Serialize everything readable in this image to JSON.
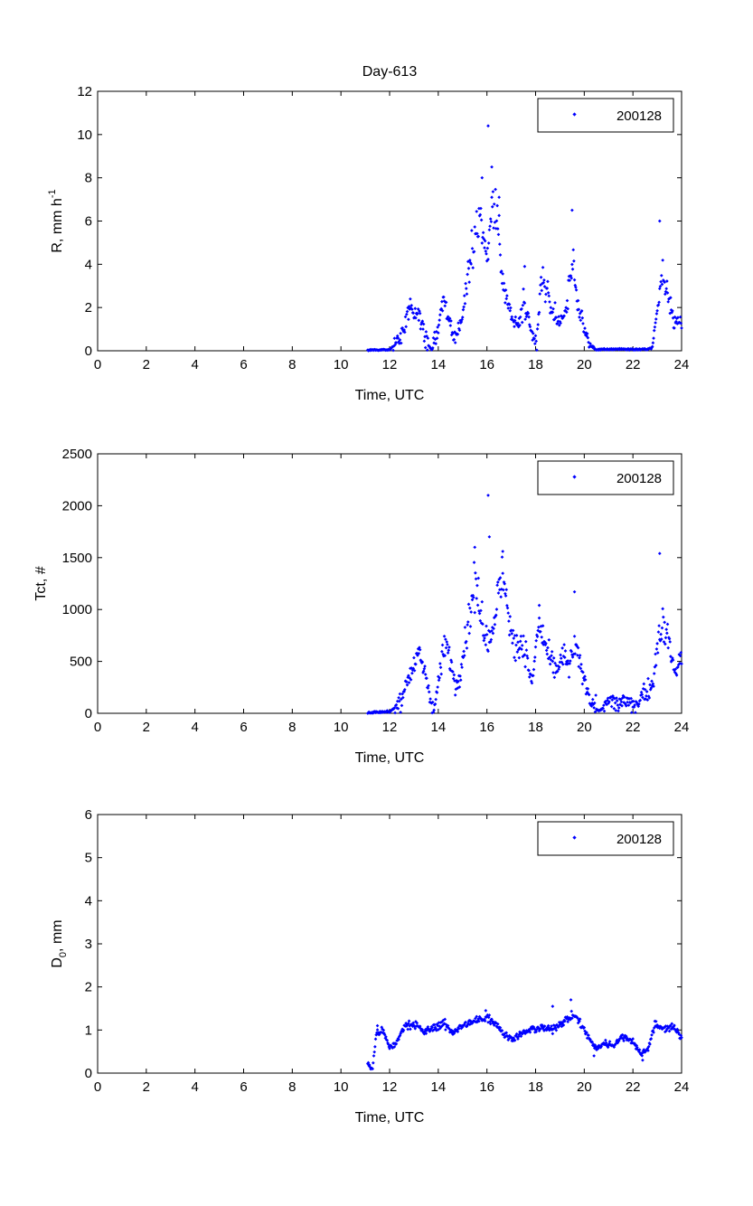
{
  "figure": {
    "title": "Day-613"
  },
  "colors": {
    "series": "#0000ff",
    "axis": "#000000",
    "background": "#ffffff"
  },
  "chart_data": [
    {
      "type": "scatter",
      "title": "Day-613",
      "xlabel": "Time, UTC",
      "ylabel": "R, mm h",
      "ylabel_sup": "-1",
      "xlim": [
        0,
        24
      ],
      "ylim": [
        0,
        12
      ],
      "xticks": [
        0,
        2,
        4,
        6,
        8,
        10,
        12,
        14,
        16,
        18,
        20,
        22,
        24
      ],
      "yticks": [
        0,
        2,
        4,
        6,
        8,
        10,
        12
      ],
      "legend": {
        "label": "200128",
        "placement": "top-right"
      },
      "series": [
        {
          "name": "200128",
          "anchors": [
            [
              11.1,
              0.02
            ],
            [
              11.5,
              0.03
            ],
            [
              12.0,
              0.05
            ],
            [
              12.5,
              0.7
            ],
            [
              12.8,
              1.9
            ],
            [
              13.1,
              1.7
            ],
            [
              13.35,
              1.2
            ],
            [
              13.6,
              0.2
            ],
            [
              13.75,
              0.05
            ],
            [
              14.0,
              1.2
            ],
            [
              14.2,
              2.3
            ],
            [
              14.45,
              1.4
            ],
            [
              14.7,
              0.5
            ],
            [
              15.0,
              1.5
            ],
            [
              15.2,
              3.5
            ],
            [
              15.45,
              5.0
            ],
            [
              15.7,
              6.5
            ],
            [
              15.9,
              5.0
            ],
            [
              16.05,
              4.5
            ],
            [
              16.2,
              7.0
            ],
            [
              16.5,
              5.5
            ],
            [
              16.7,
              2.8
            ],
            [
              17.0,
              1.6
            ],
            [
              17.25,
              1.0
            ],
            [
              17.5,
              2.2
            ],
            [
              17.8,
              0.8
            ],
            [
              18.05,
              0.3
            ],
            [
              18.25,
              3.5
            ],
            [
              18.5,
              2.5
            ],
            [
              18.7,
              1.8
            ],
            [
              19.0,
              1.3
            ],
            [
              19.3,
              2.2
            ],
            [
              19.55,
              4.2
            ],
            [
              19.75,
              2.0
            ],
            [
              20.0,
              1.0
            ],
            [
              20.2,
              0.3
            ],
            [
              20.5,
              0.05
            ],
            [
              21.5,
              0.08
            ],
            [
              22.5,
              0.05
            ],
            [
              22.8,
              0.15
            ],
            [
              23.0,
              1.8
            ],
            [
              23.2,
              3.6
            ],
            [
              23.5,
              2.5
            ],
            [
              23.7,
              1.4
            ],
            [
              24.0,
              1.2
            ]
          ],
          "outliers": [
            [
              16.05,
              10.4
            ],
            [
              16.2,
              8.5
            ],
            [
              15.8,
              8.0
            ],
            [
              19.5,
              6.5
            ],
            [
              23.1,
              6.0
            ],
            [
              16.5,
              7.1
            ],
            [
              17.55,
              3.9
            ]
          ]
        }
      ]
    },
    {
      "type": "scatter",
      "title": "",
      "xlabel": "Time, UTC",
      "ylabel": "Tct, #",
      "ylabel_sup": "",
      "xlim": [
        0,
        24
      ],
      "ylim": [
        0,
        2500
      ],
      "xticks": [
        0,
        2,
        4,
        6,
        8,
        10,
        12,
        14,
        16,
        18,
        20,
        22,
        24
      ],
      "yticks": [
        0,
        500,
        1000,
        1500,
        2000,
        2500
      ],
      "legend": {
        "label": "200128",
        "placement": "top-right"
      },
      "series": [
        {
          "name": "200128",
          "anchors": [
            [
              11.1,
              5
            ],
            [
              11.5,
              10
            ],
            [
              12.0,
              15
            ],
            [
              12.4,
              80
            ],
            [
              12.7,
              300
            ],
            [
              13.0,
              480
            ],
            [
              13.2,
              560
            ],
            [
              13.5,
              350
            ],
            [
              13.7,
              100
            ],
            [
              13.85,
              60
            ],
            [
              14.1,
              450
            ],
            [
              14.3,
              680
            ],
            [
              14.55,
              450
            ],
            [
              14.75,
              250
            ],
            [
              15.0,
              550
            ],
            [
              15.25,
              900
            ],
            [
              15.5,
              1200
            ],
            [
              15.7,
              1050
            ],
            [
              15.9,
              800
            ],
            [
              16.1,
              700
            ],
            [
              16.3,
              900
            ],
            [
              16.5,
              1200
            ],
            [
              16.7,
              1350
            ],
            [
              16.9,
              900
            ],
            [
              17.1,
              650
            ],
            [
              17.35,
              700
            ],
            [
              17.6,
              600
            ],
            [
              17.85,
              250
            ],
            [
              18.1,
              850
            ],
            [
              18.35,
              700
            ],
            [
              18.6,
              500
            ],
            [
              18.85,
              400
            ],
            [
              19.1,
              550
            ],
            [
              19.4,
              450
            ],
            [
              19.6,
              650
            ],
            [
              19.85,
              450
            ],
            [
              20.05,
              300
            ],
            [
              20.3,
              100
            ],
            [
              20.6,
              20
            ],
            [
              20.85,
              70
            ],
            [
              21.1,
              130
            ],
            [
              21.4,
              70
            ],
            [
              21.7,
              120
            ],
            [
              22.0,
              60
            ],
            [
              22.3,
              150
            ],
            [
              22.6,
              200
            ],
            [
              22.85,
              320
            ],
            [
              23.0,
              700
            ],
            [
              23.2,
              850
            ],
            [
              23.5,
              700
            ],
            [
              23.7,
              380
            ],
            [
              24.0,
              560
            ]
          ],
          "outliers": [
            [
              16.05,
              2100
            ],
            [
              16.1,
              1700
            ],
            [
              15.5,
              1600
            ],
            [
              16.65,
              1560
            ],
            [
              23.1,
              1540
            ],
            [
              19.6,
              1170
            ],
            [
              18.15,
              1040
            ]
          ]
        }
      ]
    },
    {
      "type": "scatter",
      "title": "",
      "xlabel": "Time, UTC",
      "ylabel": "D",
      "ylabel_sub": "0",
      "ylabel_suffix": ", mm",
      "xlim": [
        0,
        24
      ],
      "ylim": [
        0,
        6
      ],
      "xticks": [
        0,
        2,
        4,
        6,
        8,
        10,
        12,
        14,
        16,
        18,
        20,
        22,
        24
      ],
      "yticks": [
        0,
        1,
        2,
        3,
        4,
        5,
        6
      ],
      "legend": {
        "label": "200128",
        "placement": "top-right"
      },
      "series": [
        {
          "name": "200128",
          "anchors": [
            [
              11.1,
              0.2
            ],
            [
              11.3,
              0.1
            ],
            [
              11.45,
              0.9
            ],
            [
              11.7,
              1.0
            ],
            [
              12.0,
              0.6
            ],
            [
              12.3,
              0.7
            ],
            [
              12.6,
              1.1
            ],
            [
              13.0,
              1.15
            ],
            [
              13.4,
              0.95
            ],
            [
              13.8,
              1.05
            ],
            [
              14.2,
              1.15
            ],
            [
              14.6,
              0.95
            ],
            [
              15.0,
              1.1
            ],
            [
              15.5,
              1.2
            ],
            [
              16.0,
              1.3
            ],
            [
              16.4,
              1.15
            ],
            [
              16.7,
              0.9
            ],
            [
              17.0,
              0.8
            ],
            [
              17.4,
              0.9
            ],
            [
              17.8,
              1.0
            ],
            [
              18.2,
              1.05
            ],
            [
              18.6,
              1.0
            ],
            [
              19.0,
              1.15
            ],
            [
              19.3,
              1.25
            ],
            [
              19.6,
              1.35
            ],
            [
              19.9,
              1.1
            ],
            [
              20.2,
              0.8
            ],
            [
              20.5,
              0.55
            ],
            [
              20.8,
              0.7
            ],
            [
              21.2,
              0.65
            ],
            [
              21.6,
              0.85
            ],
            [
              22.0,
              0.75
            ],
            [
              22.3,
              0.45
            ],
            [
              22.6,
              0.55
            ],
            [
              22.9,
              1.1
            ],
            [
              23.3,
              1.05
            ],
            [
              23.7,
              1.05
            ],
            [
              24.0,
              0.8
            ]
          ],
          "outliers": [
            [
              19.45,
              1.7
            ],
            [
              15.95,
              1.45
            ],
            [
              20.4,
              0.4
            ],
            [
              22.4,
              0.3
            ],
            [
              18.7,
              1.55
            ],
            [
              11.5,
              1.1
            ]
          ]
        }
      ]
    }
  ]
}
